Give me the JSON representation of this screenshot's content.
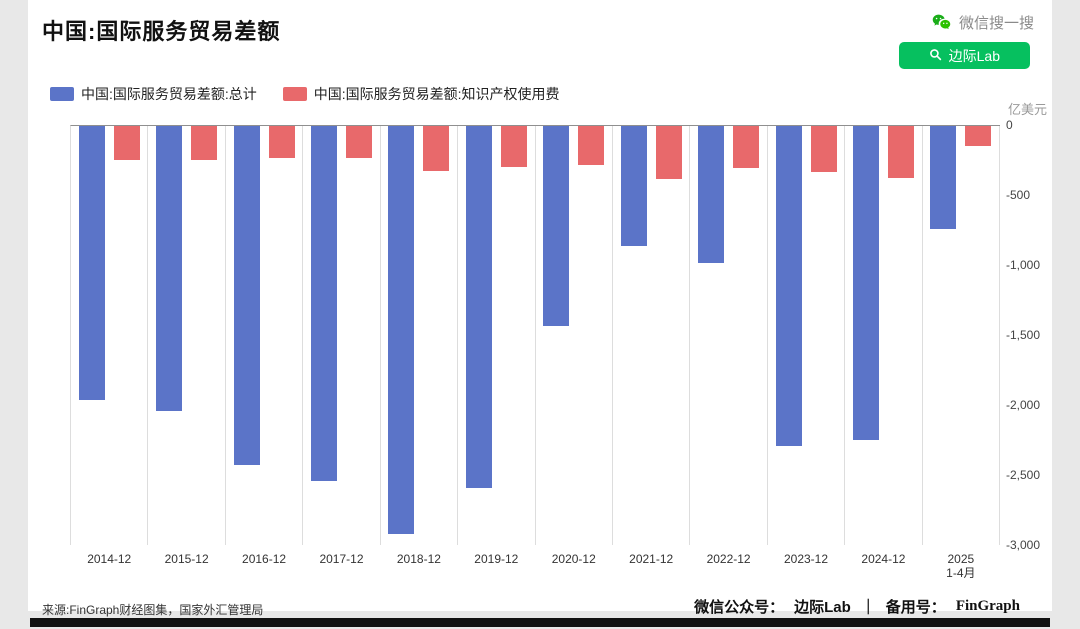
{
  "header": {
    "title": "中国:国际服务贸易差额"
  },
  "wechat": {
    "search_label": "微信搜一搜",
    "button_label": "边际Lab",
    "green": "#06c05f"
  },
  "chart_data": {
    "type": "bar",
    "title": "中国:国际服务贸易差额",
    "unit_label": "亿美元",
    "ylim": [
      0,
      -3000
    ],
    "yticks": [
      "0",
      "-500",
      "-1,000",
      "-1,500",
      "-2,000",
      "-2,500",
      "-3,000"
    ],
    "grid": "vertical",
    "legend_position": "top-left",
    "categories": [
      "2014-12",
      "2015-12",
      "2016-12",
      "2017-12",
      "2018-12",
      "2019-12",
      "2020-12",
      "2021-12",
      "2022-12",
      "2023-12",
      "2024-12",
      "2025 1-4月"
    ],
    "series": [
      {
        "name": "中国:国际服务贸易差额:总计",
        "color": "#5b74c8",
        "values": [
          -1960,
          -2040,
          -2430,
          -2540,
          -2920,
          -2590,
          -1430,
          -860,
          -980,
          -2290,
          -2250,
          -740
        ]
      },
      {
        "name": "中国:国际服务贸易差额:知识产权使用费",
        "color": "#e8696b",
        "values": [
          -240,
          -240,
          -230,
          -230,
          -320,
          -290,
          -280,
          -380,
          -300,
          -330,
          -370,
          -140
        ]
      }
    ]
  },
  "footer": {
    "source": "来源:FinGraph财经图集，国家外汇管理局",
    "account_label": "微信公众号：",
    "account_name": "边际Lab",
    "separator": "｜",
    "backup_label": "备用号：",
    "backup_name": "FinGraph"
  }
}
